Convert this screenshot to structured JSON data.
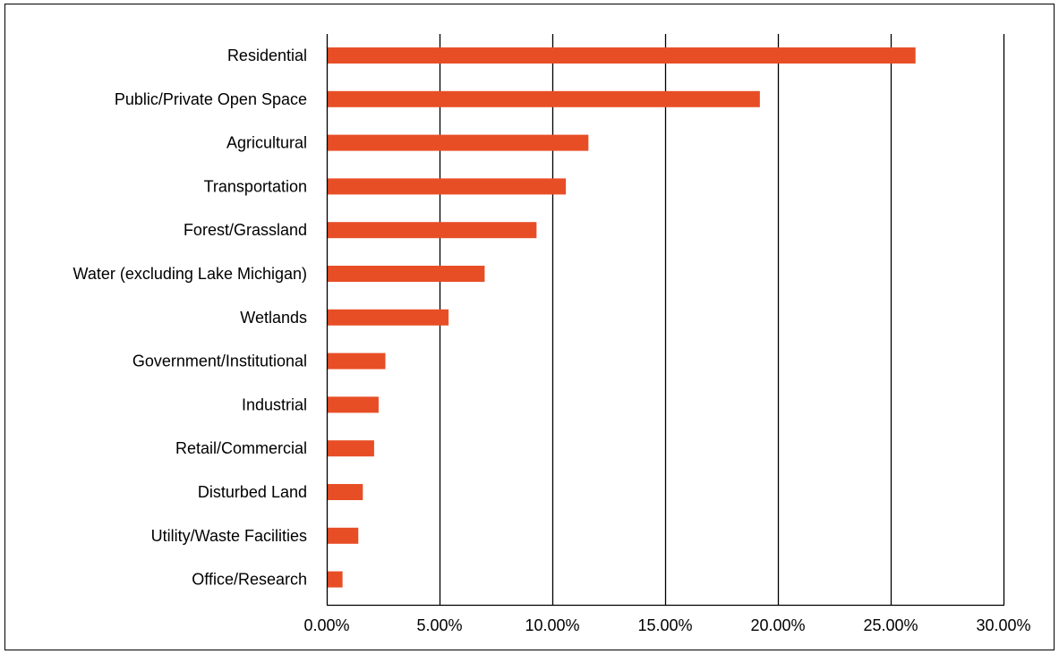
{
  "chart_data": {
    "type": "bar",
    "orientation": "horizontal",
    "title": "",
    "xlabel": "",
    "ylabel": "",
    "categories": [
      "Residential",
      "Public/Private Open Space",
      "Agricultural",
      "Transportation",
      "Forest/Grassland",
      "Water (excluding Lake Michigan)",
      "Wetlands",
      "Government/Institutional",
      "Industrial",
      "Retail/Commercial",
      "Disturbed Land",
      "Utility/Waste Facilities",
      "Office/Research"
    ],
    "values": [
      26.1,
      19.2,
      11.6,
      10.6,
      9.3,
      7.0,
      5.4,
      2.6,
      2.3,
      2.1,
      1.6,
      1.4,
      0.7
    ],
    "value_unit": "percent",
    "xlim": [
      0,
      30
    ],
    "x_ticks": [
      0,
      5,
      10,
      15,
      20,
      25,
      30
    ],
    "x_tick_labels": [
      "0.00%",
      "5.00%",
      "10.00%",
      "15.00%",
      "20.00%",
      "25.00%",
      "30.00%"
    ],
    "grid": "vertical major gridlines",
    "legend": "none",
    "bar_color": "#E84E26"
  }
}
